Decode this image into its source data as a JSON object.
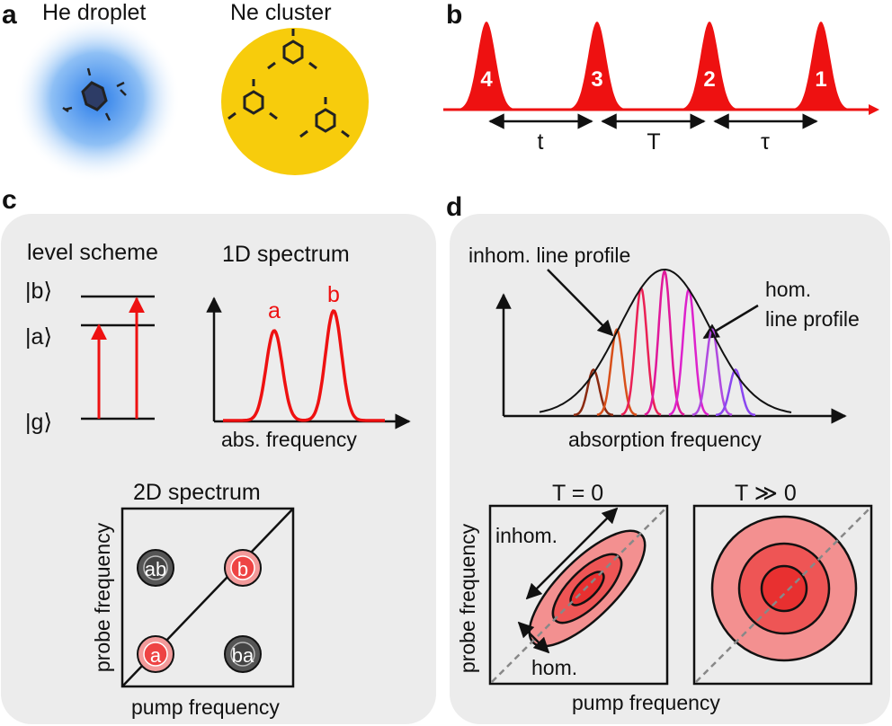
{
  "panel_labels": [
    "a",
    "b",
    "c",
    "d"
  ],
  "panel_a": {
    "left_title": "He droplet",
    "right_title": "Ne cluster"
  },
  "panel_b": {
    "pulses": [
      "4",
      "3",
      "2",
      "1"
    ],
    "delays": [
      "t",
      "T",
      "τ"
    ]
  },
  "panel_c": {
    "level_title": "level scheme",
    "levels": [
      "|b⟩",
      "|a⟩",
      "|g⟩"
    ],
    "spec1d_title": "1D spectrum",
    "peaks": [
      "a",
      "b"
    ],
    "spec1d_xlabel": "abs. frequency",
    "spec2d_title": "2D spectrum",
    "spec2d_xlabel": "pump frequency",
    "spec2d_ylabel": "probe frequency",
    "cross_peaks": [
      "ab",
      "ba"
    ],
    "diag_peaks": [
      "a",
      "b"
    ]
  },
  "panel_d": {
    "inhom_label": "inhom. line profile",
    "hom_label_1": "hom.",
    "hom_label_2": "line profile",
    "xlabel": "absorption frequency",
    "t0_title": "T = 0",
    "tlarge_title": "T ≫ 0",
    "inhom_arrow": "inhom.",
    "hom_arrow": "hom.",
    "x2d_label": "pump frequency",
    "y2d_label": "probe frequency"
  },
  "colors": {
    "pulse_red": "#ee1111",
    "droplet_blue": "#3f8ef0",
    "cluster_yellow": "#f7cc0c",
    "panel_bg": "#ececec",
    "spectral_lines": [
      "#8b2a10",
      "#d8501a",
      "#ea2055",
      "#e0189a",
      "#dd22cc",
      "#b04ae0",
      "#8a46f0"
    ]
  }
}
